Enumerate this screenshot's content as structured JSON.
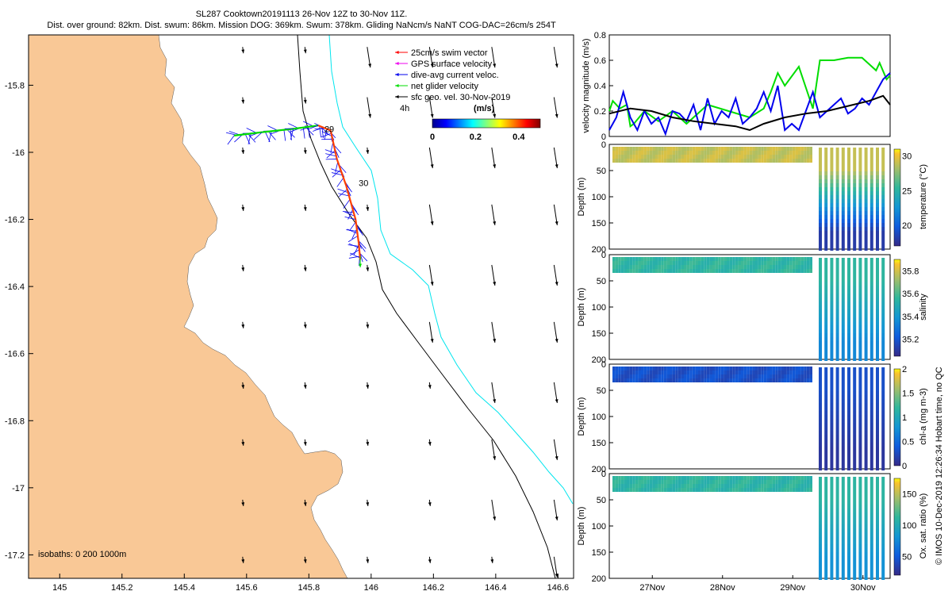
{
  "header": {
    "line1": "SL287 Cooktown20191113 26-Nov 12Z to 30-Nov 11Z.",
    "line2": "Dist. over ground: 82km. Dist. swum: 86km. Mission DOG: 369km. Swum: 378km. Gliding NaNcm/s NaNT COG-DAC=26cm/s 254T"
  },
  "credit": "© IMOS 10-Dec-2019 12:26:34 Hobart time, no QC",
  "colors": {
    "land": "#f9c896",
    "isobath200": "#000000",
    "isobath1000": "#00e5ee",
    "swim": "#ff0000",
    "gps": "#ee00ee",
    "dac": "#0000ee",
    "net": "#00dd00",
    "geo": "#000000"
  },
  "chart_data": [
    {
      "type": "map",
      "xlim": [
        144.9,
        146.65
      ],
      "ylim": [
        -17.27,
        -15.65
      ],
      "x_ticks": [
        "145",
        "145.2",
        "145.4",
        "145.6",
        "145.8",
        "146",
        "146.2",
        "146.4",
        "146.6"
      ],
      "y_ticks": [
        "-15.8",
        "-16",
        "-16.2",
        "-16.4",
        "-16.6",
        "-16.8",
        "-17",
        "-17.2"
      ],
      "legend": [
        {
          "label": "25cm/s swim vector",
          "color": "#ff0000"
        },
        {
          "label": "GPS surface velocity",
          "color": "#ee00ee"
        },
        {
          "label": "dive-avg current veloc.",
          "color": "#0000ee"
        },
        {
          "label": "net glider velocity",
          "color": "#00dd00"
        },
        {
          "label": "sfc geo. vel. 30-Nov-2019",
          "color": "#000000"
        }
      ],
      "speed_colorbar": {
        "label": "(m/s)",
        "ticks": [
          "0",
          "0.2",
          "0.4"
        ],
        "range": [
          0,
          0.5
        ]
      },
      "legend_time_label": "4h",
      "isobaths_label": "isobaths: 0   200   1000m",
      "day_labels": [
        {
          "text": "29",
          "lon": 145.85,
          "lat": -15.94
        },
        {
          "text": "30",
          "lon": 145.96,
          "lat": -16.1
        }
      ],
      "track": [
        [
          145.56,
          -15.95
        ],
        [
          145.65,
          -15.94
        ],
        [
          145.75,
          -15.93
        ],
        [
          145.83,
          -15.92
        ],
        [
          145.87,
          -15.935
        ],
        [
          145.89,
          -16.02
        ],
        [
          145.92,
          -16.1
        ],
        [
          145.95,
          -16.2
        ],
        [
          145.96,
          -16.27
        ],
        [
          145.965,
          -16.32
        ]
      ]
    },
    {
      "type": "line",
      "ylabel": "velocity magnitude (m/s)",
      "ylim": [
        0,
        0.8
      ],
      "y_ticks": [
        "0",
        "0.2",
        "0.4",
        "0.6",
        "0.8"
      ],
      "xlim": [
        0,
        4
      ],
      "series": [
        {
          "name": "net glider velocity",
          "color": "#00dd00",
          "x": [
            0,
            0.05,
            0.15,
            0.25,
            0.3,
            0.35,
            0.5,
            0.7,
            0.9,
            1.1,
            1.4,
            1.7,
            2.0,
            2.2,
            2.3,
            2.4,
            2.5,
            2.7,
            2.9,
            3.0,
            3.2,
            3.4,
            3.6,
            3.8,
            3.85,
            3.95,
            4.0
          ],
          "y": [
            0.2,
            0.28,
            0.22,
            0.25,
            0.08,
            0.1,
            0.2,
            0.12,
            0.2,
            0.1,
            0.25,
            0.2,
            0.15,
            0.22,
            0.35,
            0.5,
            0.4,
            0.55,
            0.22,
            0.6,
            0.6,
            0.62,
            0.62,
            0.52,
            0.58,
            0.45,
            0.48
          ]
        },
        {
          "name": "dive-avg current",
          "color": "#0000ee",
          "x": [
            0,
            0.1,
            0.2,
            0.3,
            0.4,
            0.5,
            0.6,
            0.7,
            0.8,
            0.9,
            1.0,
            1.1,
            1.2,
            1.3,
            1.4,
            1.5,
            1.6,
            1.7,
            1.8,
            1.9,
            2.0,
            2.1,
            2.2,
            2.3,
            2.4,
            2.5,
            2.6,
            2.7,
            2.8,
            2.9,
            3.0,
            3.1,
            3.2,
            3.3,
            3.4,
            3.5,
            3.6,
            3.7,
            3.8,
            3.9,
            4.0
          ],
          "y": [
            0.05,
            0.15,
            0.35,
            0.15,
            0.05,
            0.2,
            0.1,
            0.15,
            0.02,
            0.2,
            0.18,
            0.12,
            0.25,
            0.05,
            0.3,
            0.1,
            0.2,
            0.15,
            0.3,
            0.1,
            0.15,
            0.22,
            0.35,
            0.2,
            0.4,
            0.05,
            0.1,
            0.05,
            0.2,
            0.35,
            0.15,
            0.2,
            0.25,
            0.3,
            0.18,
            0.22,
            0.3,
            0.25,
            0.35,
            0.45,
            0.5
          ]
        },
        {
          "name": "sfc geo. vel.",
          "color": "#000000",
          "x": [
            0,
            0.3,
            0.6,
            0.9,
            1.2,
            1.5,
            1.8,
            2.0,
            2.2,
            2.5,
            2.8,
            3.1,
            3.4,
            3.7,
            3.9,
            4.0
          ],
          "y": [
            0.18,
            0.22,
            0.2,
            0.15,
            0.12,
            0.1,
            0.08,
            0.05,
            0.1,
            0.15,
            0.18,
            0.2,
            0.24,
            0.28,
            0.32,
            0.25
          ]
        }
      ]
    },
    {
      "type": "heatmap",
      "ylabel": "Depth (m)",
      "cbar_label": "temperature (°C)",
      "cbar_ticks": [
        "20",
        "25",
        "30"
      ],
      "vmin": 17,
      "vmax": 31,
      "surface": 29,
      "deep": 18,
      "cbar_range": [
        17,
        31
      ]
    },
    {
      "type": "heatmap",
      "ylabel": "Depth (m)",
      "cbar_label": "salinity",
      "cbar_ticks": [
        "35.2",
        "35.4",
        "35.6",
        "35.8"
      ],
      "vmin": 35.05,
      "vmax": 35.9,
      "surface": 35.55,
      "deep": 35.35,
      "cbar_range": [
        35.05,
        35.9
      ]
    },
    {
      "type": "heatmap",
      "ylabel": "Depth (m)",
      "cbar_label": "chl-a (mg m-3)",
      "cbar_ticks": [
        "0",
        "0.5",
        "1",
        "1.5",
        "2"
      ],
      "vmin": 0,
      "vmax": 2,
      "surface": 0.3,
      "deep": 0.1,
      "cbar_range": [
        0,
        2
      ]
    },
    {
      "type": "heatmap",
      "ylabel": "Depth (m)",
      "cbar_label": "Ox. sat. ratio (%)",
      "cbar_ticks": [
        "50",
        "100",
        "150"
      ],
      "vmin": 20,
      "vmax": 175,
      "surface": 110,
      "deep": 80,
      "cbar_range": [
        20,
        175
      ]
    }
  ],
  "profile_axes": {
    "depth_ticks": [
      "0",
      "50",
      "100",
      "150",
      "200"
    ],
    "time_ticks": [
      "27Nov",
      "28Nov",
      "29Nov",
      "30Nov"
    ]
  }
}
